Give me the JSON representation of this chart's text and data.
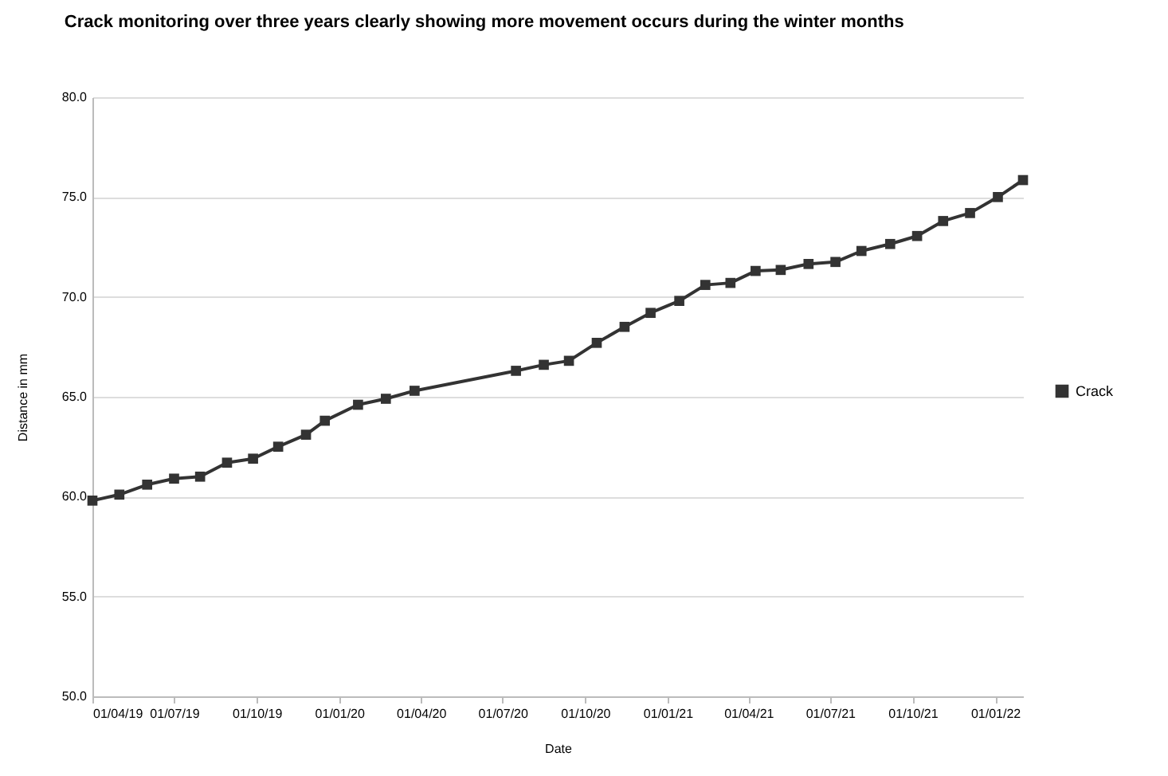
{
  "chart_data": {
    "type": "line",
    "title": "Crack monitoring over three years clearly showing more movement occurs during the winter months",
    "xlabel": "Date",
    "ylabel": "Distance in mm",
    "x": [
      "2019-04-01",
      "2019-05-01",
      "2019-06-01",
      "2019-07-01",
      "2019-07-30",
      "2019-08-29",
      "2019-09-27",
      "2019-10-25",
      "2019-11-25",
      "2019-12-16",
      "2020-01-22",
      "2020-02-22",
      "2020-03-25",
      "2020-07-16",
      "2020-08-16",
      "2020-09-13",
      "2020-10-14",
      "2020-11-14",
      "2020-12-13",
      "2021-01-14",
      "2021-02-12",
      "2021-03-12",
      "2021-04-09",
      "2021-05-07",
      "2021-06-07",
      "2021-07-07",
      "2021-08-05",
      "2021-09-06",
      "2021-10-06",
      "2021-11-04",
      "2021-12-04",
      "2022-01-04",
      "2022-02-01"
    ],
    "series": [
      {
        "name": "Crack",
        "color": "#333333",
        "values": [
          59.8,
          60.1,
          60.6,
          60.9,
          61.0,
          61.7,
          61.9,
          62.5,
          63.1,
          63.8,
          64.6,
          64.9,
          65.3,
          66.3,
          66.6,
          66.8,
          67.7,
          68.5,
          69.2,
          69.8,
          70.6,
          70.7,
          71.3,
          71.35,
          71.65,
          71.75,
          72.3,
          72.65,
          73.05,
          73.8,
          74.2,
          75.0,
          75.85
        ]
      }
    ],
    "xlim": [
      "2019-04-01",
      "2022-02-01"
    ],
    "xticks": [
      {
        "value": "2019-04-01",
        "label": "01/04/19"
      },
      {
        "value": "2019-07-01",
        "label": "01/07/19"
      },
      {
        "value": "2019-10-01",
        "label": "01/10/19"
      },
      {
        "value": "2020-01-01",
        "label": "01/01/20"
      },
      {
        "value": "2020-04-01",
        "label": "01/04/20"
      },
      {
        "value": "2020-07-01",
        "label": "01/07/20"
      },
      {
        "value": "2020-10-01",
        "label": "01/10/20"
      },
      {
        "value": "2021-01-01",
        "label": "01/01/21"
      },
      {
        "value": "2021-04-01",
        "label": "01/04/21"
      },
      {
        "value": "2021-07-01",
        "label": "01/07/21"
      },
      {
        "value": "2021-10-01",
        "label": "01/10/21"
      },
      {
        "value": "2022-01-01",
        "label": "01/01/22"
      }
    ],
    "ylim": [
      50,
      80
    ],
    "yticks": [
      {
        "value": 50,
        "label": "50.0"
      },
      {
        "value": 55,
        "label": "55.0"
      },
      {
        "value": 60,
        "label": "60.0"
      },
      {
        "value": 65,
        "label": "65.0"
      },
      {
        "value": 70,
        "label": "70.0"
      },
      {
        "value": 75,
        "label": "75.0"
      },
      {
        "value": 80,
        "label": "80.0"
      }
    ],
    "grid": "y",
    "legend": "right",
    "marker": "square",
    "line_style": "solid"
  }
}
